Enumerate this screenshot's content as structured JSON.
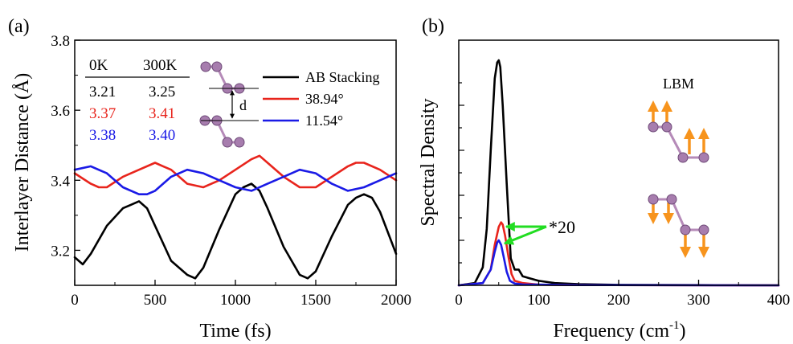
{
  "panel_labels": {
    "a": "(a)",
    "b": "(b)"
  },
  "chart_data": [
    {
      "type": "line",
      "xlabel": "Time (fs)",
      "ylabel": "Interlayer Distance (Å)",
      "xlim": [
        0,
        2000
      ],
      "ylim": [
        3.1,
        3.8
      ],
      "x_ticks": [
        "0",
        "500",
        "1000",
        "1500",
        "2000"
      ],
      "y_ticks": [
        "3.2",
        "3.4",
        "3.6",
        "3.8"
      ],
      "legend_position": "top-right",
      "series": [
        {
          "name": "AB Stacking",
          "color": "#000000",
          "x": [
            0,
            50,
            100,
            200,
            300,
            350,
            400,
            450,
            500,
            600,
            700,
            750,
            800,
            900,
            1000,
            1050,
            1100,
            1150,
            1200,
            1300,
            1400,
            1450,
            1500,
            1600,
            1700,
            1750,
            1800,
            1850,
            1900,
            1950,
            2000
          ],
          "y": [
            3.18,
            3.16,
            3.19,
            3.27,
            3.32,
            3.33,
            3.34,
            3.32,
            3.27,
            3.17,
            3.13,
            3.12,
            3.15,
            3.26,
            3.36,
            3.38,
            3.39,
            3.37,
            3.32,
            3.21,
            3.13,
            3.12,
            3.14,
            3.24,
            3.33,
            3.35,
            3.36,
            3.35,
            3.31,
            3.25,
            3.19
          ]
        },
        {
          "name": "38.94°",
          "color": "#e8241c",
          "x": [
            0,
            100,
            150,
            200,
            300,
            400,
            500,
            550,
            600,
            700,
            800,
            900,
            1000,
            1100,
            1150,
            1200,
            1300,
            1400,
            1500,
            1600,
            1700,
            1750,
            1800,
            1900,
            2000
          ],
          "y": [
            3.42,
            3.39,
            3.38,
            3.38,
            3.41,
            3.43,
            3.45,
            3.44,
            3.43,
            3.39,
            3.38,
            3.4,
            3.43,
            3.46,
            3.47,
            3.45,
            3.41,
            3.38,
            3.38,
            3.41,
            3.44,
            3.45,
            3.45,
            3.43,
            3.4
          ]
        },
        {
          "name": "11.54°",
          "color": "#1a1ae6",
          "x": [
            0,
            100,
            200,
            300,
            400,
            450,
            500,
            600,
            700,
            800,
            900,
            1000,
            1100,
            1200,
            1300,
            1400,
            1500,
            1600,
            1700,
            1800,
            1900,
            2000
          ],
          "y": [
            3.43,
            3.44,
            3.42,
            3.38,
            3.36,
            3.36,
            3.37,
            3.41,
            3.43,
            3.42,
            3.4,
            3.38,
            3.37,
            3.39,
            3.41,
            3.43,
            3.42,
            3.39,
            3.37,
            3.38,
            3.4,
            3.42
          ]
        }
      ],
      "table": {
        "headers": [
          "0K",
          "300K"
        ],
        "rows": [
          {
            "values": [
              "3.21",
              "3.25"
            ],
            "color": "#000000"
          },
          {
            "values": [
              "3.37",
              "3.41"
            ],
            "color": "#e8241c"
          },
          {
            "values": [
              "3.38",
              "3.40"
            ],
            "color": "#1a1ae6"
          }
        ]
      },
      "annotations": {
        "distance_label": "d"
      }
    },
    {
      "type": "line",
      "xlabel": "Frequency (cm",
      "xlabel_superscript": "-1",
      "xlabel_suffix": ")",
      "ylabel": "Spectral Density",
      "xlim": [
        0,
        400
      ],
      "ylim": [
        0,
        1.0
      ],
      "x_ticks": [
        "0",
        "100",
        "200",
        "300",
        "400"
      ],
      "series": [
        {
          "name": "AB Stacking",
          "color": "#000000",
          "x": [
            0,
            20,
            30,
            35,
            40,
            45,
            48,
            50,
            52,
            55,
            60,
            65,
            70,
            75,
            80,
            90,
            100,
            120,
            150,
            200,
            300,
            400
          ],
          "y": [
            0,
            0.01,
            0.08,
            0.25,
            0.6,
            0.92,
            0.99,
            1.0,
            0.97,
            0.8,
            0.45,
            0.12,
            0.07,
            0.07,
            0.04,
            0.03,
            0.02,
            0.01,
            0.005,
            0.002,
            0.001,
            0.0
          ]
        },
        {
          "name": "38.94°",
          "color": "#e8241c",
          "x": [
            0,
            30,
            40,
            45,
            50,
            53,
            55,
            58,
            62,
            66,
            70,
            80,
            100,
            150,
            400
          ],
          "y": [
            0,
            0.01,
            0.07,
            0.18,
            0.26,
            0.28,
            0.27,
            0.22,
            0.13,
            0.05,
            0.02,
            0.01,
            0.003,
            0.001,
            0.0
          ]
        },
        {
          "name": "11.54°",
          "color": "#1a1ae6",
          "x": [
            0,
            30,
            40,
            45,
            48,
            50,
            53,
            56,
            60,
            64,
            70,
            80,
            150,
            400
          ],
          "y": [
            0,
            0.01,
            0.07,
            0.15,
            0.19,
            0.2,
            0.18,
            0.13,
            0.06,
            0.02,
            0.008,
            0.004,
            0.001,
            0.0
          ]
        }
      ],
      "annotations": {
        "scale_factor": "*20",
        "mode_label": "LBM"
      }
    }
  ]
}
